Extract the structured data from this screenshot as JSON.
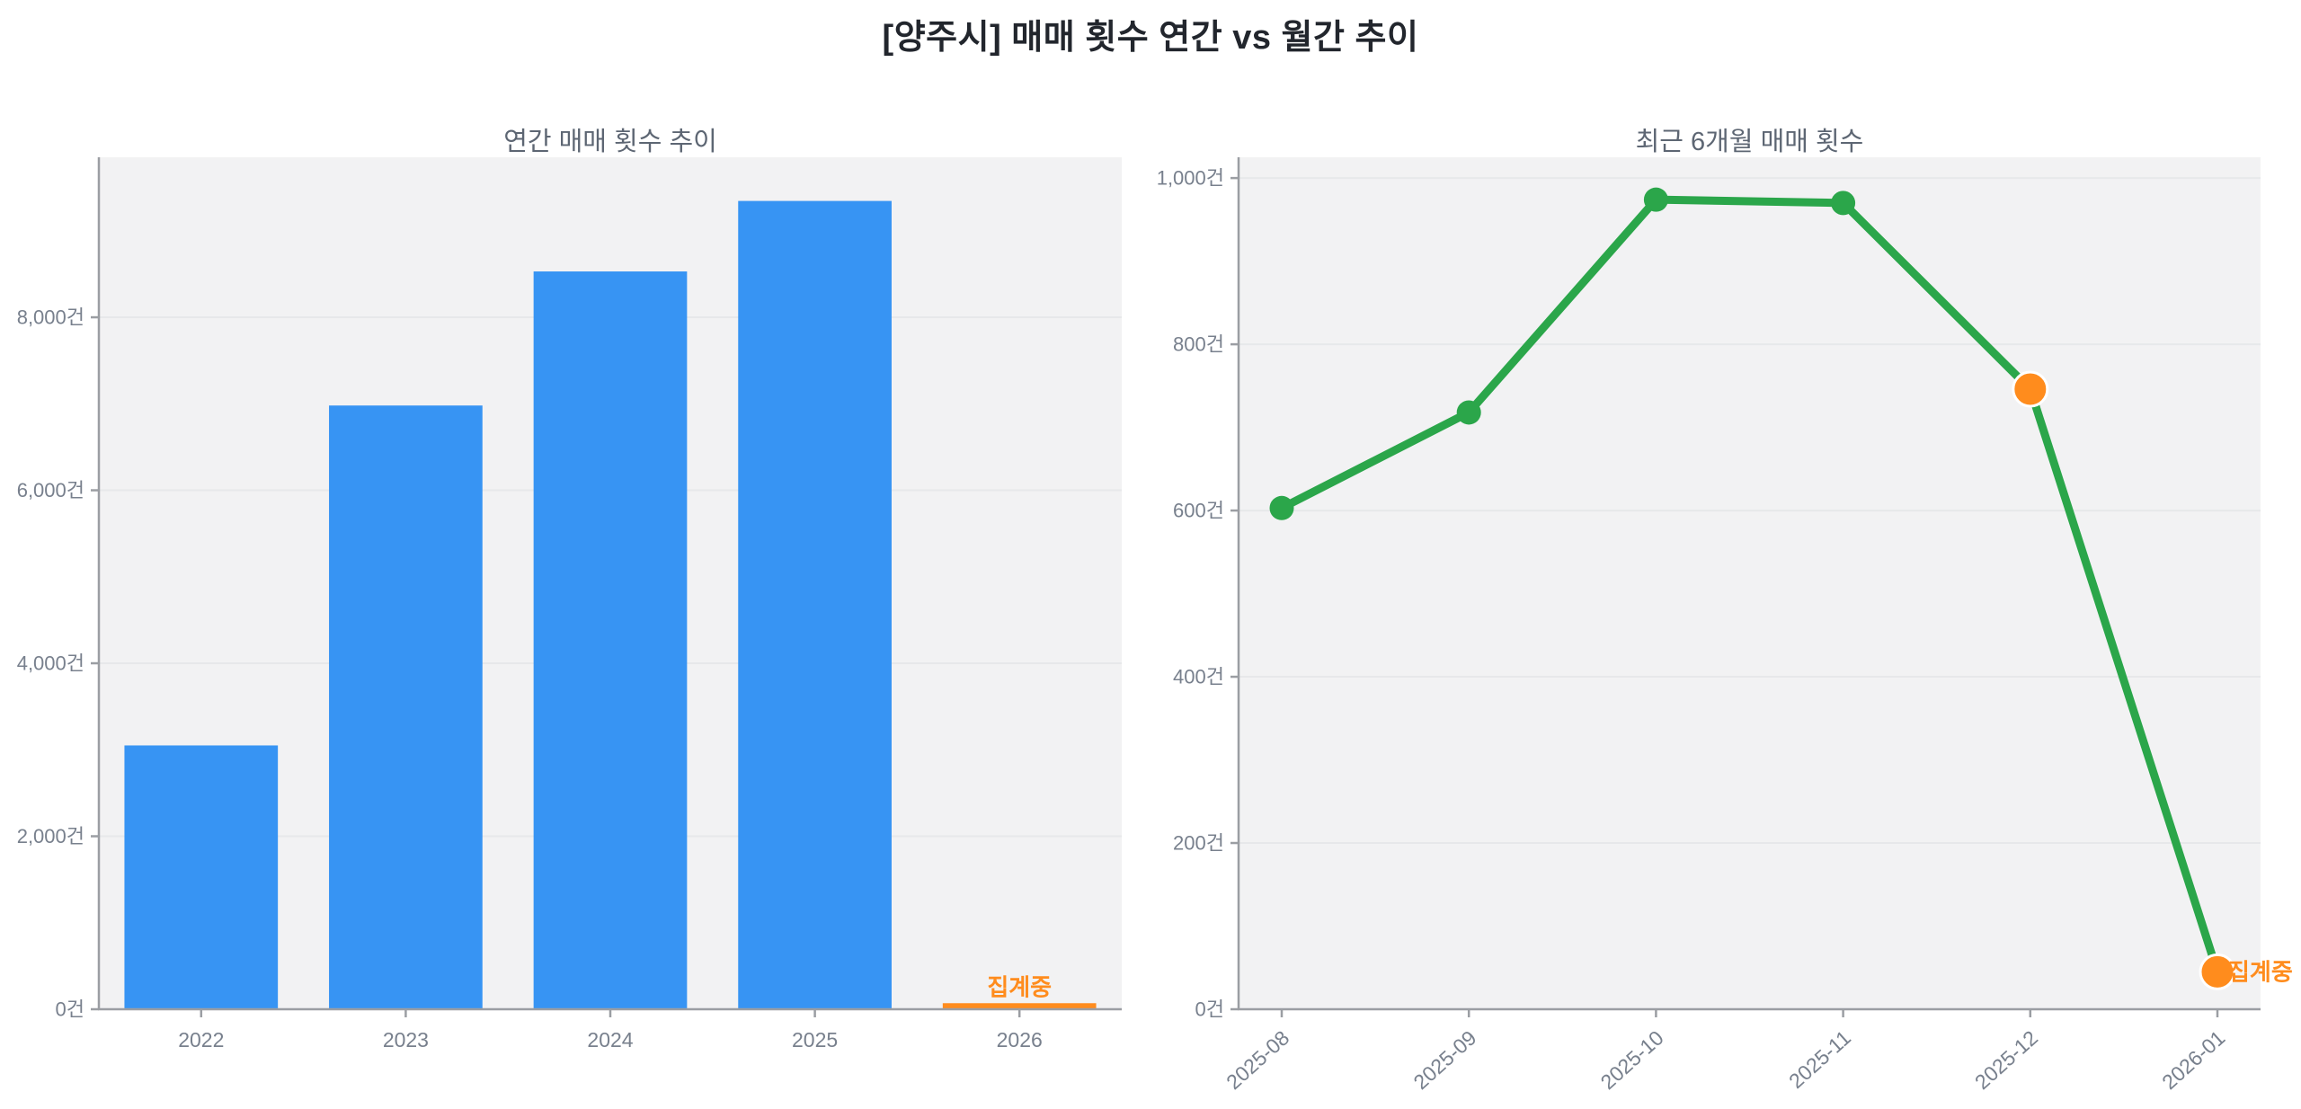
{
  "figure_title": "[양주시] 매매 횟수 연간 vs 월간 추이",
  "colors": {
    "bar_blue": "#3794f3",
    "pending_orange": "#ff8c1d",
    "line_green": "#2ba64a",
    "marker_green": "#2ba64a",
    "marker_edge_white": "#ffffff",
    "plot_bg": "#f2f2f3",
    "grid": "#e7e8ea",
    "spine": "#9b9ea3",
    "tick_label": "#78808d",
    "panel_title": "#5d6673",
    "main_title": "#22262d"
  },
  "chart_data": [
    {
      "type": "bar",
      "title": "연간 매매 횟수 추이",
      "categories": [
        "2022",
        "2023",
        "2024",
        "2025",
        "2026"
      ],
      "values": [
        3050,
        6980,
        8530,
        9345,
        70
      ],
      "bar_colors": [
        "blue",
        "blue",
        "blue",
        "blue",
        "orange"
      ],
      "unit": "건",
      "yticks": [
        0,
        2000,
        4000,
        6000,
        8000
      ],
      "ytick_labels": [
        "0건",
        "2,000건",
        "4,000건",
        "6,000건",
        "8,000건"
      ],
      "ylim": [
        0,
        9850
      ],
      "grid": true,
      "legend": "none",
      "annotations": [
        {
          "text": "집계중",
          "category": "2026",
          "color": "orange"
        }
      ]
    },
    {
      "type": "line",
      "title": "최근 6개월 매매 횟수",
      "x": [
        "2025-08",
        "2025-09",
        "2025-10",
        "2025-11",
        "2025-12",
        "2026-01"
      ],
      "values": [
        603,
        718,
        974,
        970,
        746,
        45
      ],
      "point_colors": [
        "green",
        "green",
        "green",
        "green",
        "orange",
        "orange"
      ],
      "unit": "건",
      "yticks": [
        0,
        200,
        400,
        600,
        800,
        1000
      ],
      "ytick_labels": [
        "0건",
        "200건",
        "400건",
        "600건",
        "800건",
        "1,000건"
      ],
      "ylim": [
        0,
        1025
      ],
      "grid": true,
      "legend": "none",
      "xtick_rotation": -42,
      "annotations": [
        {
          "text": "집계중",
          "x": "2026-01",
          "color": "orange"
        }
      ]
    }
  ]
}
